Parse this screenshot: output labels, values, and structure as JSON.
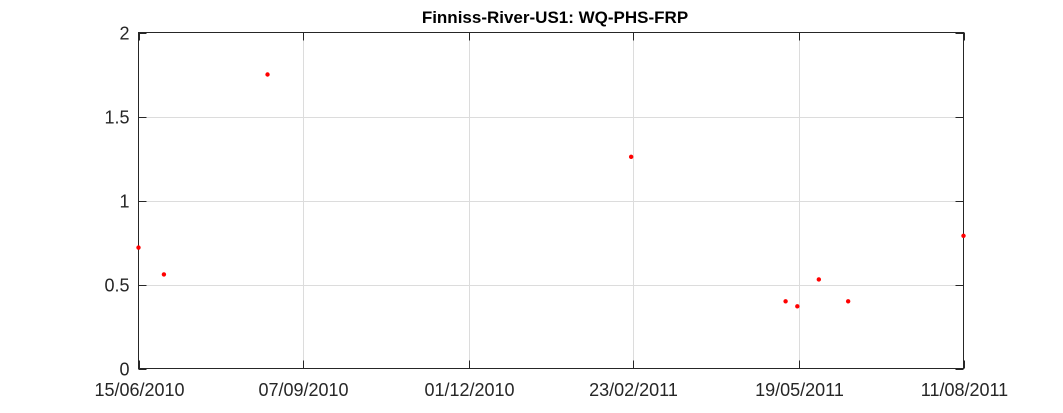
{
  "chart_data": {
    "type": "scatter",
    "title": "Finniss-River-US1: WQ-PHS-FRP",
    "xlabel": "",
    "ylabel": "",
    "x_axis_type": "date",
    "xlim": [
      "2010-06-15",
      "2011-08-11"
    ],
    "ylim": [
      0,
      2
    ],
    "x_ticks": [
      {
        "date": "2010-06-15",
        "label": "15/06/2010"
      },
      {
        "date": "2010-09-07",
        "label": "07/09/2010"
      },
      {
        "date": "2010-12-01",
        "label": "01/12/2010"
      },
      {
        "date": "2011-02-23",
        "label": "23/02/2011"
      },
      {
        "date": "2011-05-19",
        "label": "19/05/2011"
      },
      {
        "date": "2011-08-11",
        "label": "11/08/2011"
      }
    ],
    "y_ticks": [
      {
        "value": 0,
        "label": "0"
      },
      {
        "value": 0.5,
        "label": "0.5"
      },
      {
        "value": 1,
        "label": "1"
      },
      {
        "value": 1.5,
        "label": "1.5"
      },
      {
        "value": 2,
        "label": "2"
      }
    ],
    "grid": true,
    "marker_color": "#ff0000",
    "series": [
      {
        "points": [
          {
            "x": "2010-06-15",
            "y": 0.72
          },
          {
            "x": "2010-06-28",
            "y": 0.56
          },
          {
            "x": "2010-08-20",
            "y": 1.75
          },
          {
            "x": "2011-02-22",
            "y": 1.26
          },
          {
            "x": "2011-05-12",
            "y": 0.4
          },
          {
            "x": "2011-05-18",
            "y": 0.37
          },
          {
            "x": "2011-05-29",
            "y": 0.53
          },
          {
            "x": "2011-06-13",
            "y": 0.4
          },
          {
            "x": "2011-08-11",
            "y": 0.79
          }
        ]
      }
    ]
  }
}
